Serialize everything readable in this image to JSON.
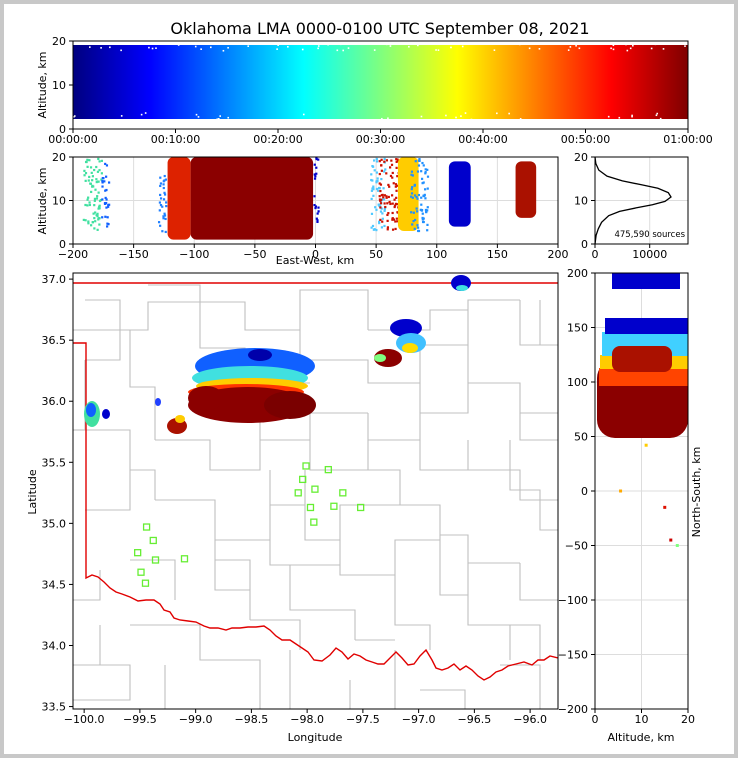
{
  "title": "Oklahoma LMA 0000-0100 UTC September 08, 2021",
  "colors": {
    "county_lines": "#c0c0c0",
    "state_line": "#e00000",
    "station_marker": "#66ee33",
    "grid": "#dddddd"
  },
  "chart_data": [
    {
      "type": "scatter",
      "name": "time-altitude",
      "ylabel": "Altitude, km",
      "xlim": [
        "00:00:00",
        "01:00:00"
      ],
      "ylim": [
        0,
        20
      ],
      "xticks": [
        "00:00:00",
        "00:10:00",
        "00:20:00",
        "00:30:00",
        "00:40:00",
        "00:50:00",
        "01:00:00"
      ],
      "yticks": [
        "0",
        "10",
        "20"
      ],
      "colormap": "jet",
      "points_note": "dense band of sources 1–20 km altitude spanning full hour, colored by time"
    },
    {
      "type": "scatter",
      "name": "east-west-altitude",
      "xlabel": "East-West, km",
      "ylabel": "Altitude, km",
      "xlim": [
        -200,
        200
      ],
      "ylim": [
        0,
        20
      ],
      "xticks": [
        "−200",
        "−150",
        "−100",
        "−50",
        "0",
        "50",
        "100",
        "150",
        "200"
      ],
      "yticks": [
        "0",
        "10",
        "20"
      ],
      "clusters": [
        {
          "x_range": [
            -192,
            -177
          ],
          "alt_range": [
            3,
            20
          ],
          "color": "#40e0a0"
        },
        {
          "x_range": [
            -177,
            -171
          ],
          "alt_range": [
            4,
            19
          ],
          "color": "#1060ff"
        },
        {
          "x_range": [
            -130,
            -124
          ],
          "alt_range": [
            3,
            16
          ],
          "color": "#2080ff"
        },
        {
          "x_range": [
            -122,
            -103
          ],
          "alt_range": [
            1,
            20
          ],
          "color": "#dd2200"
        },
        {
          "x_range": [
            -103,
            -2
          ],
          "alt_range": [
            1,
            20
          ],
          "color": "#8b0000"
        },
        {
          "x_range": [
            -2,
            2
          ],
          "alt_range": [
            3,
            20
          ],
          "color": "#0000cc"
        },
        {
          "x_range": [
            45,
            57
          ],
          "alt_range": [
            3,
            20
          ],
          "color": "#50c8ff"
        },
        {
          "x_range": [
            52,
            68
          ],
          "alt_range": [
            3,
            20
          ],
          "color": "#cc1100"
        },
        {
          "x_range": [
            68,
            85
          ],
          "alt_range": [
            3,
            20
          ],
          "color": "#ffcc00"
        },
        {
          "x_range": [
            78,
            92
          ],
          "alt_range": [
            3,
            20
          ],
          "color": "#2090ff"
        },
        {
          "x_range": [
            110,
            128
          ],
          "alt_range": [
            4,
            19
          ],
          "color": "#0000cc"
        },
        {
          "x_range": [
            165,
            182
          ],
          "alt_range": [
            6,
            19
          ],
          "color": "#aa1100"
        }
      ]
    },
    {
      "type": "line",
      "name": "altitude-histogram",
      "xlim": [
        0,
        17000
      ],
      "ylim": [
        0,
        20
      ],
      "xticks": [
        "0",
        "10000"
      ],
      "yticks": [
        "0",
        "10",
        "20"
      ],
      "x": [
        0,
        200,
        600,
        1200,
        2500,
        4500,
        7500,
        10500,
        12800,
        13900,
        13400,
        11500,
        8500,
        5000,
        2200,
        700,
        150,
        0
      ],
      "y": [
        0,
        2,
        3.5,
        5,
        6.5,
        7.5,
        8.3,
        9,
        9.8,
        10.8,
        11.8,
        12.8,
        13.6,
        14.5,
        15.6,
        17,
        18.5,
        20
      ],
      "annotation": "475,590 sources"
    },
    {
      "type": "scatter",
      "name": "plan-view",
      "xlabel": "Longitude",
      "ylabel": "Latitude",
      "xlim": [
        -100.1,
        -95.75
      ],
      "ylim": [
        33.48,
        37.05
      ],
      "xticks": [
        "−100.0",
        "−99.5",
        "−99.0",
        "−98.5",
        "−98.0",
        "−97.5",
        "−97.0",
        "−96.5",
        "−96.0"
      ],
      "yticks": [
        "33.5",
        "34.0",
        "34.5",
        "35.0",
        "35.5",
        "36.0",
        "36.5",
        "37.0"
      ],
      "stations": [
        [
          -99.44,
          34.97
        ],
        [
          -99.38,
          34.86
        ],
        [
          -99.52,
          34.76
        ],
        [
          -99.36,
          34.7
        ],
        [
          -99.49,
          34.6
        ],
        [
          -99.45,
          34.51
        ],
        [
          -99.1,
          34.71
        ],
        [
          -98.01,
          35.47
        ],
        [
          -98.04,
          35.36
        ],
        [
          -97.81,
          35.44
        ],
        [
          -97.93,
          35.28
        ],
        [
          -98.08,
          35.25
        ],
        [
          -97.68,
          35.25
        ],
        [
          -97.97,
          35.13
        ],
        [
          -97.76,
          35.14
        ],
        [
          -97.52,
          35.13
        ],
        [
          -97.94,
          35.01
        ]
      ]
    },
    {
      "type": "scatter",
      "name": "altitude-north-south",
      "xlabel": "Altitude, km",
      "ylabel": "North-South, km",
      "xlim": [
        0,
        20
      ],
      "ylim": [
        -200,
        200
      ],
      "xticks": [
        "0",
        "10",
        "20"
      ],
      "yticks": [
        "200",
        "150",
        "100",
        "50",
        "0",
        "−50",
        "−100",
        "−150",
        "−200"
      ]
    }
  ]
}
